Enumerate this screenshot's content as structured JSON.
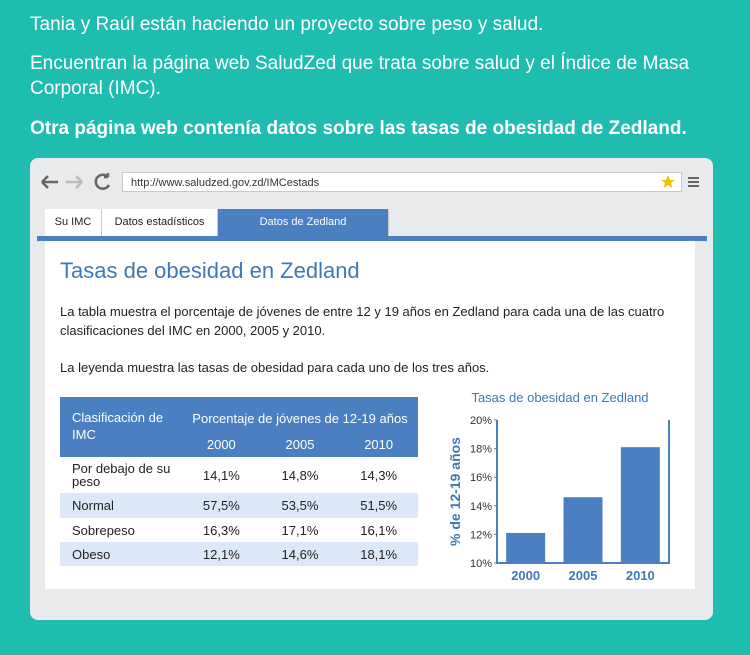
{
  "intro": [
    "Tania y Raúl están haciendo un proyecto sobre peso y salud.",
    "Encuentran la página web SaludZed que trata sobre salud y el Índice de Masa Corporal (IMC).",
    "Otra página web contenía datos sobre las tasas de obesidad de Zedland."
  ],
  "browser": {
    "url": "http://www.saludzed.gov.zd/IMCestads",
    "tabs": [
      "Su IMC",
      "Datos estadísticos",
      "Datos de Zedland"
    ]
  },
  "page": {
    "title": "Tasas de obesidad en Zedland",
    "paragraphs": [
      "La tabla muestra el porcentaje de jóvenes de entre 12 y 19 años en Zedland para cada una de las cuatro clasificaciones del IMC en 2000, 2005 y 2010.",
      "La leyenda muestra las tasas de obesidad para cada uno de los tres años."
    ]
  },
  "table": {
    "header": [
      "Clasificación de IMC",
      "Porcentaje de jóvenes de 12-19 años"
    ],
    "years": [
      "2000",
      "2005",
      "2010"
    ],
    "rows": [
      [
        "Por debajo de su peso",
        "14,1%",
        "14,8%",
        "14,3%"
      ],
      [
        "Normal",
        "57,5%",
        "53,5%",
        "51,5%"
      ],
      [
        "Sobrepeso",
        "16,3%",
        "17,1%",
        "16,1%"
      ],
      [
        "Obeso",
        "12,1%",
        "14,6%",
        "18,1%"
      ]
    ]
  },
  "chart_data": {
    "type": "bar",
    "title": "Tasas de obesidad en Zedland",
    "y_label": "% de 12-19 años",
    "categories": [
      "2000",
      "2005",
      "2010"
    ],
    "values": [
      12.1,
      14.6,
      18.1
    ],
    "color": "#4a7fc1",
    "ylim": [
      10,
      20
    ],
    "yticks": [
      {
        "value": 10,
        "label": "10%"
      },
      {
        "value": 12,
        "label": "12%"
      },
      {
        "value": 14,
        "label": "14%"
      },
      {
        "value": 16,
        "label": "16%"
      },
      {
        "value": 18,
        "label": "18%"
      },
      {
        "value": 20,
        "label": "20%"
      }
    ]
  }
}
